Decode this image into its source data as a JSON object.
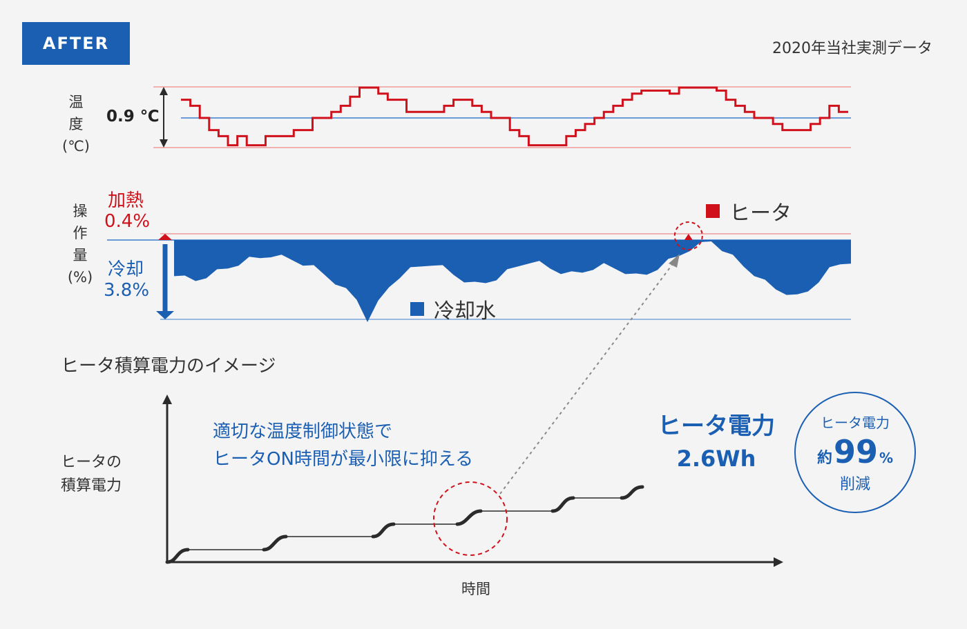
{
  "badge": "AFTER",
  "source_note": "2020年当社実測データ",
  "temp_chart": {
    "ylabel_lines": [
      "温",
      "度",
      "(℃)"
    ],
    "range_label": "0.9 ℃"
  },
  "op_chart": {
    "ylabel_lines": [
      "操",
      "作",
      "量",
      "(%)"
    ],
    "heat_label": "加熱",
    "heat_value": "0.4%",
    "cool_label": "冷却",
    "cool_value": "3.8%",
    "legend_heater": "ヒータ",
    "legend_water": "冷却水"
  },
  "image_chart": {
    "title": "ヒータ積算電力のイメージ",
    "ylabel_lines": [
      "ヒータの",
      "積算電力"
    ],
    "xlabel": "時間",
    "annotation_lines": [
      "適切な温度制御状態で",
      "ヒータON時間が最小限に抑える"
    ]
  },
  "heater_power": {
    "title": "ヒータ電力",
    "value": "2.6Wh"
  },
  "reduction": {
    "label": "ヒータ電力",
    "prefix": "約",
    "number": "99",
    "unit": "%",
    "suffix": "削減"
  },
  "colors": {
    "brand_blue": "#1b5fb3",
    "heat_red": "#d0101a",
    "limit_line_red": "#f09a9a",
    "setpoint_blue": "#3a7dd0",
    "dark": "#2b2b2b"
  },
  "chart_data": [
    {
      "type": "line",
      "name": "temperature",
      "ylabel": "温度 (℃)",
      "band_width_c": 0.9,
      "relative_level_range": [
        -1,
        1
      ],
      "step_levels": [
        0.6,
        0.4,
        0.0,
        -0.4,
        -0.6,
        -0.9,
        -0.6,
        -0.9,
        -0.9,
        -0.6,
        -0.6,
        -0.6,
        -0.4,
        -0.4,
        0.0,
        0.0,
        0.2,
        0.4,
        0.7,
        1.0,
        1.0,
        0.8,
        0.6,
        0.6,
        0.2,
        0.2,
        0.2,
        0.2,
        0.4,
        0.6,
        0.6,
        0.4,
        0.2,
        0.0,
        0.0,
        -0.4,
        -0.6,
        -0.9,
        -0.9,
        -0.9,
        -0.9,
        -0.6,
        -0.4,
        -0.2,
        0.0,
        0.2,
        0.4,
        0.6,
        0.8,
        0.9,
        0.9,
        0.9,
        0.8,
        1.0,
        1.0,
        1.0,
        1.0,
        0.9,
        0.6,
        0.4,
        0.2,
        0.0,
        0.0,
        -0.2,
        -0.4,
        -0.4,
        -0.4,
        -0.2,
        0.0,
        0.4,
        0.2
      ]
    },
    {
      "type": "area",
      "name": "operation",
      "ylabel": "操作量 (%)",
      "heat_max_pct": 0.4,
      "cool_max_pct": 3.8,
      "cooling_pct_samples": [
        1.6,
        1.8,
        1.9,
        1.7,
        1.5,
        1.3,
        1.1,
        0.9,
        0.8,
        0.7,
        0.8,
        0.9,
        1.1,
        1.3,
        1.6,
        2.0,
        2.4,
        2.8,
        3.8,
        3.0,
        2.2,
        1.7,
        1.4,
        1.2,
        1.1,
        1.3,
        1.6,
        1.9,
        2.1,
        2.0,
        1.8,
        1.5,
        1.2,
        1.0,
        1.1,
        1.3,
        1.5,
        1.6,
        1.5,
        1.3,
        1.2,
        1.3,
        1.5,
        1.7,
        1.6,
        1.3,
        1.0,
        0.7,
        0.4,
        0.2,
        0.0,
        0.4,
        0.8,
        1.2,
        1.6,
        2.0,
        2.3,
        2.5,
        2.7,
        2.4,
        1.9,
        1.4,
        1.1,
        1.0
      ],
      "heating_spike_position": 0.76
    },
    {
      "type": "line",
      "name": "cumulative heater power (image)",
      "xlabel": "時間",
      "ylabel": "ヒータの積算電力",
      "x": [
        0,
        1,
        2,
        3,
        4,
        5,
        6
      ],
      "y": [
        0,
        1,
        2,
        3,
        4,
        5,
        6
      ]
    }
  ]
}
